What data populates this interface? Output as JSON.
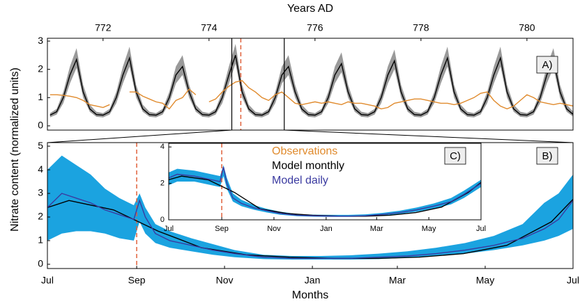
{
  "ylabel": "Nitrate content (normalized units)",
  "chart_data": [
    {
      "type": "line",
      "panel_label": "A)",
      "xlabel": "Years AD",
      "xaxis": "top",
      "x": [
        771,
        771.125,
        771.25,
        771.375,
        771.5,
        771.625,
        771.75,
        771.875,
        772,
        772.125,
        772.25,
        772.375,
        772.5,
        772.625,
        772.75,
        772.875,
        773,
        773.125,
        773.25,
        773.375,
        773.5,
        773.625,
        773.75,
        773.875,
        774,
        774.125,
        774.25,
        774.375,
        774.5,
        774.625,
        774.75,
        774.875,
        775,
        775.125,
        775.25,
        775.375,
        775.5,
        775.625,
        775.75,
        775.875,
        776,
        776.125,
        776.25,
        776.375,
        776.5,
        776.625,
        776.75,
        776.875,
        777,
        777.125,
        777.25,
        777.375,
        777.5,
        777.625,
        777.75,
        777.875,
        778,
        778.125,
        778.25,
        778.375,
        778.5,
        778.625,
        778.75,
        778.875,
        779,
        779.125,
        779.25,
        779.375,
        779.5,
        779.625,
        779.75,
        779.875,
        780,
        780.125,
        780.25,
        780.375,
        780.5,
        780.625,
        780.75,
        780.875
      ],
      "xlim": [
        770.95,
        780.87
      ],
      "xticks": [
        772,
        774,
        776,
        778,
        780
      ],
      "ylim": [
        -0.15,
        3.1
      ],
      "yticks": [
        0,
        1,
        2,
        3
      ],
      "band": {
        "color": "#9a9a9a",
        "lower": [
          0.3,
          0.4,
          0.8,
          1.5,
          2.05,
          1.0,
          0.5,
          0.32,
          0.3,
          0.4,
          0.8,
          1.5,
          2.1,
          1.0,
          0.5,
          0.32,
          0.3,
          0.4,
          0.8,
          1.5,
          1.8,
          1.0,
          0.5,
          0.32,
          0.3,
          0.4,
          0.8,
          1.5,
          2.2,
          1.0,
          0.5,
          0.32,
          0.3,
          0.4,
          0.8,
          1.5,
          1.8,
          1.0,
          0.5,
          0.32,
          0.3,
          0.4,
          0.8,
          1.5,
          1.9,
          1.0,
          0.5,
          0.32,
          0.3,
          0.4,
          0.8,
          1.5,
          2.0,
          1.0,
          0.5,
          0.32,
          0.3,
          0.4,
          0.8,
          1.5,
          2.1,
          1.0,
          0.5,
          0.32,
          0.3,
          0.4,
          0.8,
          1.5,
          2.1,
          1.0,
          0.5,
          0.32,
          0.3,
          0.4,
          0.8,
          1.5,
          2.05,
          1.0,
          0.5,
          0.32
        ],
        "upper": [
          0.45,
          0.6,
          1.2,
          2.1,
          2.75,
          1.45,
          0.75,
          0.5,
          0.45,
          0.6,
          1.2,
          2.1,
          2.8,
          1.45,
          0.75,
          0.5,
          0.45,
          0.6,
          1.2,
          2.1,
          2.5,
          1.45,
          0.75,
          0.5,
          0.45,
          0.6,
          1.2,
          2.1,
          2.9,
          1.45,
          0.75,
          0.5,
          0.45,
          0.6,
          1.2,
          2.1,
          2.5,
          1.45,
          0.75,
          0.5,
          0.45,
          0.6,
          1.2,
          2.1,
          2.6,
          1.45,
          0.75,
          0.5,
          0.45,
          0.6,
          1.2,
          2.1,
          2.7,
          1.45,
          0.75,
          0.5,
          0.45,
          0.6,
          1.2,
          2.1,
          2.8,
          1.45,
          0.75,
          0.5,
          0.45,
          0.6,
          1.2,
          2.1,
          2.8,
          1.45,
          0.75,
          0.5,
          0.45,
          0.6,
          1.2,
          2.1,
          2.75,
          1.45,
          0.75,
          0.5
        ]
      },
      "series": [
        {
          "color": "#000000",
          "values": [
            0.38,
            0.5,
            1.0,
            1.8,
            2.35,
            1.2,
            0.6,
            0.4,
            0.38,
            0.5,
            1.0,
            1.8,
            2.4,
            1.2,
            0.6,
            0.4,
            0.38,
            0.5,
            1.0,
            1.8,
            2.1,
            1.2,
            0.6,
            0.4,
            0.38,
            0.5,
            1.0,
            1.8,
            2.5,
            1.2,
            0.6,
            0.4,
            0.38,
            0.5,
            1.0,
            1.8,
            2.1,
            1.2,
            0.6,
            0.4,
            0.38,
            0.5,
            1.0,
            1.8,
            2.2,
            1.2,
            0.6,
            0.4,
            0.38,
            0.5,
            1.0,
            1.8,
            2.3,
            1.2,
            0.6,
            0.4,
            0.38,
            0.5,
            1.0,
            1.8,
            2.4,
            1.2,
            0.6,
            0.4,
            0.38,
            0.5,
            1.0,
            1.8,
            2.4,
            1.2,
            0.6,
            0.4,
            0.38,
            0.5,
            1.0,
            1.8,
            2.35,
            1.2,
            0.6,
            0.4
          ]
        },
        {
          "color": "#e08a2c",
          "values": [
            1.1,
            1.1,
            1.08,
            1.05,
            1.0,
            0.9,
            0.75,
            0.7,
            0.65,
            0.75,
            null,
            null,
            1.2,
            1.2,
            1.05,
            0.95,
            0.85,
            0.8,
            0.6,
            0.9,
            1.0,
            1.3,
            1.1,
            null,
            0.85,
            0.95,
            1.2,
            1.4,
            1.55,
            1.6,
            1.35,
            1.2,
            1.0,
            0.9,
            1.1,
            1.2,
            1.0,
            0.8,
            0.75,
            0.8,
            0.85,
            0.8,
            0.85,
            0.8,
            0.75,
            0.85,
            0.8,
            0.8,
            0.75,
            0.7,
            0.6,
            0.65,
            0.8,
            0.85,
            0.9,
            0.95,
            0.95,
            0.9,
            0.85,
            0.8,
            0.8,
            0.75,
            0.8,
            0.9,
            1.0,
            1.15,
            1.2,
            0.9,
            0.7,
            0.6,
            0.7,
            0.9,
            1.1,
            1.0,
            0.85,
            0.8,
            0.75,
            0.8,
            0.75,
            0.7
          ]
        }
      ],
      "marker_x": 774.6,
      "zoom_range": [
        774.43,
        775.42
      ]
    },
    {
      "type": "line",
      "panel_label": "B)",
      "xlabel": "Months",
      "xaxis": "bottom",
      "x": [
        0,
        10,
        20,
        30,
        40,
        50,
        60,
        64,
        68,
        75,
        85,
        100,
        115,
        130,
        150,
        170,
        190,
        210,
        230,
        250,
        270,
        290,
        310,
        330,
        345,
        355,
        365
      ],
      "xlim": [
        0,
        365
      ],
      "xticks": [
        {
          "value": 0,
          "label": "Jul"
        },
        {
          "value": 62,
          "label": "Sep"
        },
        {
          "value": 123,
          "label": "Nov"
        },
        {
          "value": 184,
          "label": "Jan"
        },
        {
          "value": 243,
          "label": "Mar"
        },
        {
          "value": 304,
          "label": "May"
        },
        {
          "value": 365,
          "label": "Jul"
        }
      ],
      "ylim": [
        -0.18,
        5.15
      ],
      "yticks": [
        0,
        1,
        2,
        3,
        4,
        5
      ],
      "band": {
        "color": "#1ba3e0",
        "lower": [
          1.0,
          1.3,
          1.4,
          1.4,
          1.3,
          1.1,
          1.0,
          1.8,
          1.3,
          0.9,
          0.7,
          0.55,
          0.4,
          0.3,
          0.22,
          0.2,
          0.2,
          0.2,
          0.22,
          0.28,
          0.35,
          0.45,
          0.6,
          0.8,
          1.0,
          1.2,
          1.5
        ],
        "upper": [
          4.0,
          4.6,
          4.2,
          3.8,
          3.2,
          2.8,
          2.5,
          3.0,
          2.4,
          1.7,
          1.4,
          1.1,
          0.85,
          0.6,
          0.4,
          0.35,
          0.35,
          0.38,
          0.45,
          0.55,
          0.7,
          0.9,
          1.2,
          1.7,
          2.6,
          3.0,
          3.8
        ]
      },
      "series": [
        {
          "color": "#000000",
          "x": [
            0,
            15,
            46,
            77,
            107,
            138,
            168,
            199,
            230,
            258,
            289,
            319,
            350,
            365
          ],
          "values": [
            2.4,
            2.7,
            2.3,
            1.4,
            0.7,
            0.4,
            0.3,
            0.25,
            0.25,
            0.3,
            0.45,
            0.8,
            1.8,
            2.75
          ]
        },
        {
          "color": "#3a3aa0",
          "values": [
            2.4,
            3.0,
            2.8,
            2.6,
            2.3,
            2.1,
            1.9,
            2.7,
            2.0,
            1.3,
            1.0,
            0.8,
            0.6,
            0.45,
            0.3,
            0.25,
            0.25,
            0.25,
            0.3,
            0.35,
            0.45,
            0.6,
            0.8,
            1.1,
            1.5,
            1.9,
            2.7
          ]
        }
      ],
      "marker_x": 62
    },
    {
      "type": "line",
      "panel_label": "C)",
      "xaxis": "bottom",
      "x": [
        0,
        10,
        20,
        30,
        40,
        50,
        60,
        64,
        68,
        75,
        85,
        100,
        115,
        130,
        150,
        170,
        190,
        210,
        230,
        250,
        270,
        290,
        310,
        330,
        345,
        355,
        365
      ],
      "xlim": [
        0,
        365
      ],
      "xticks": [
        {
          "value": 0,
          "label": "Jul"
        },
        {
          "value": 62,
          "label": "Sep"
        },
        {
          "value": 123,
          "label": "Nov"
        },
        {
          "value": 184,
          "label": "Jan"
        },
        {
          "value": 243,
          "label": "Mar"
        },
        {
          "value": 304,
          "label": "May"
        },
        {
          "value": 365,
          "label": "Jul"
        }
      ],
      "ylim": [
        0,
        4.2
      ],
      "yticks": [
        0,
        2,
        4
      ],
      "band": {
        "color": "#1ba3e0",
        "lower": [
          1.9,
          2.1,
          2.1,
          2.1,
          2.0,
          1.9,
          1.8,
          2.4,
          1.7,
          1.0,
          0.75,
          0.55,
          0.4,
          0.28,
          0.2,
          0.17,
          0.16,
          0.16,
          0.18,
          0.24,
          0.33,
          0.45,
          0.62,
          0.85,
          1.2,
          1.5,
          1.8
        ],
        "upper": [
          2.6,
          2.8,
          2.75,
          2.7,
          2.6,
          2.5,
          2.4,
          3.0,
          2.3,
          1.45,
          1.1,
          0.8,
          0.6,
          0.45,
          0.32,
          0.28,
          0.27,
          0.27,
          0.3,
          0.38,
          0.5,
          0.68,
          0.9,
          1.2,
          1.6,
          1.9,
          2.2
        ]
      },
      "series": [
        {
          "color": "#000000",
          "x": [
            0,
            15,
            46,
            77,
            107,
            138,
            168,
            199,
            230,
            258,
            289,
            319,
            350,
            365
          ],
          "values": [
            2.2,
            2.4,
            2.2,
            1.5,
            0.6,
            0.35,
            0.25,
            0.2,
            0.2,
            0.25,
            0.4,
            0.7,
            1.5,
            2.05
          ]
        },
        {
          "color": "#3a3aa0",
          "values": [
            2.3,
            2.5,
            2.45,
            2.4,
            2.3,
            2.2,
            2.1,
            2.9,
            2.0,
            1.2,
            0.9,
            0.65,
            0.5,
            0.35,
            0.25,
            0.22,
            0.2,
            0.2,
            0.22,
            0.3,
            0.4,
            0.55,
            0.75,
            1.0,
            1.4,
            1.7,
            2.0
          ]
        }
      ],
      "marker_x": 62,
      "legend": [
        {
          "name": "Observations",
          "color": "#e08a2c"
        },
        {
          "name": "Model monthly",
          "color": "#000000"
        },
        {
          "name": "Model daily",
          "color": "#3a3aa0"
        }
      ]
    }
  ]
}
